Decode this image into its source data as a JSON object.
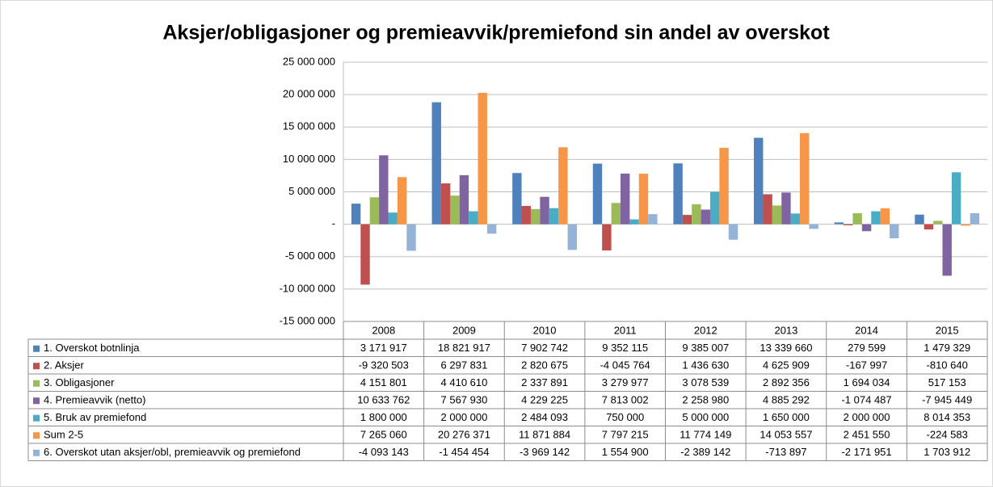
{
  "chart_data": {
    "type": "bar",
    "title": "Aksjer/obligasjoner og premieavvik/premiefond sin andel av overskot",
    "categories": [
      "2008",
      "2009",
      "2010",
      "2011",
      "2012",
      "2013",
      "2014",
      "2015"
    ],
    "ylim": [
      -15000000,
      25000000
    ],
    "yticks": [
      {
        "value": -15000000,
        "label": "-15 000 000"
      },
      {
        "value": -10000000,
        "label": "-10 000 000"
      },
      {
        "value": -5000000,
        "label": "-5 000 000"
      },
      {
        "value": 0,
        "label": "-"
      },
      {
        "value": 5000000,
        "label": "5 000 000"
      },
      {
        "value": 10000000,
        "label": "10 000 000"
      },
      {
        "value": 15000000,
        "label": "15 000 000"
      },
      {
        "value": 20000000,
        "label": "20 000 000"
      },
      {
        "value": 25000000,
        "label": "25 000 000"
      }
    ],
    "grid": true,
    "series": [
      {
        "name": "1. Overskot botnlinja",
        "color": "#4f81bd",
        "values": [
          3171917,
          18821917,
          7902742,
          9352115,
          9385007,
          13339660,
          279599,
          1479329
        ],
        "value_labels": [
          "3 171 917",
          "18 821 917",
          "7 902 742",
          "9 352 115",
          "9 385 007",
          "13 339 660",
          "279 599",
          "1 479 329"
        ]
      },
      {
        "name": "2. Aksjer",
        "color": "#c0504d",
        "values": [
          -9320503,
          6297831,
          2820675,
          -4045764,
          1436630,
          4625909,
          -167997,
          -810640
        ],
        "value_labels": [
          "-9 320 503",
          "6 297 831",
          "2 820 675",
          "-4 045 764",
          "1 436 630",
          "4 625 909",
          "-167 997",
          "-810 640"
        ]
      },
      {
        "name": "3. Obligasjoner",
        "color": "#9bbb59",
        "values": [
          4151801,
          4410610,
          2337891,
          3279977,
          3078539,
          2892356,
          1694034,
          517153
        ],
        "value_labels": [
          "4 151 801",
          "4 410 610",
          "2 337 891",
          "3 279 977",
          "3 078 539",
          "2 892 356",
          "1 694 034",
          "517 153"
        ]
      },
      {
        "name": "4. Premieavvik (netto)",
        "color": "#8064a2",
        "values": [
          10633762,
          7567930,
          4229225,
          7813002,
          2258980,
          4885292,
          -1074487,
          -7945449
        ],
        "value_labels": [
          "10 633 762",
          "7 567 930",
          "4 229 225",
          "7 813 002",
          "2 258 980",
          "4 885 292",
          "-1 074 487",
          "-7 945 449"
        ]
      },
      {
        "name": "5. Bruk av premiefond",
        "color": "#4bacc6",
        "values": [
          1800000,
          2000000,
          2484093,
          750000,
          5000000,
          1650000,
          2000000,
          8014353
        ],
        "value_labels": [
          "1 800 000",
          "2 000 000",
          "2 484 093",
          "750 000",
          "5 000 000",
          "1 650 000",
          "2 000 000",
          "8 014 353"
        ]
      },
      {
        "name": "Sum 2-5",
        "color": "#f79646",
        "values": [
          7265060,
          20276371,
          11871884,
          7797215,
          11774149,
          14053557,
          2451550,
          -224583
        ],
        "value_labels": [
          "7 265 060",
          "20 276 371",
          "11 871 884",
          "7 797 215",
          "11 774 149",
          "14 053 557",
          "2 451 550",
          "-224 583"
        ]
      },
      {
        "name": "6. Overskot utan aksjer/obl, premieavvik og premiefond",
        "color": "#95b3d7",
        "values": [
          -4093143,
          -1454454,
          -3969142,
          1554900,
          -2389142,
          -713897,
          -2171951,
          1703912
        ],
        "value_labels": [
          "-4 093 143",
          "-1 454 454",
          "-3 969 142",
          "1 554 900",
          "-2 389 142",
          "-713 897",
          "-2 171 951",
          "1 703 912"
        ]
      }
    ]
  }
}
